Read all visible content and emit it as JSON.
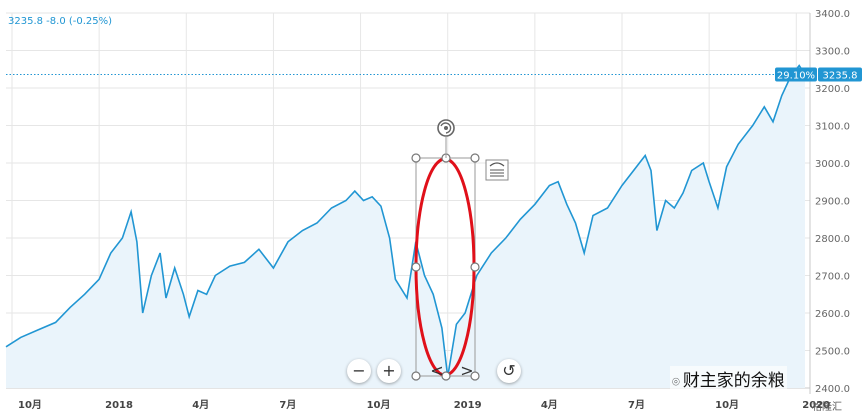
{
  "readout": {
    "text": "3235.8 -8.0 (-0.25%)"
  },
  "price_tag": {
    "change": "29.10%",
    "price": "3235.8"
  },
  "controls": {
    "zoom_out": "−",
    "zoom_in": "+",
    "prev": "<",
    "next": ">",
    "reset": "↺"
  },
  "watermark": {
    "text": "财主家的余粮",
    "icon": "wechat-icon"
  },
  "watermark2": {
    "text": "格隆汇"
  },
  "colors": {
    "line": "#2196d3",
    "fill": "#eaf4fb",
    "annotation": "#e0101a",
    "grid": "#e6e6e6",
    "price_tag": "#2196d3"
  },
  "chart_data": {
    "type": "area",
    "ylim": [
      2400,
      3400
    ],
    "y_ticks": [
      "3400.0",
      "3300.0",
      "3200.0",
      "3100.0",
      "3000.0",
      "2900.0",
      "2800.0",
      "2700.0",
      "2600.0",
      "2500.0",
      "2400.0"
    ],
    "x_ticks": [
      {
        "label": "10月",
        "t": 0
      },
      {
        "label": "2018",
        "t": 3
      },
      {
        "label": "4月",
        "t": 6
      },
      {
        "label": "7月",
        "t": 9
      },
      {
        "label": "10月",
        "t": 12
      },
      {
        "label": "2019",
        "t": 15
      },
      {
        "label": "4月",
        "t": 18
      },
      {
        "label": "7月",
        "t": 21
      },
      {
        "label": "10月",
        "t": 24
      },
      {
        "label": "2020",
        "t": 27
      }
    ],
    "series": [
      {
        "values": [
          [
            -0.3,
            2510
          ],
          [
            0.3,
            2535
          ],
          [
            0.9,
            2555
          ],
          [
            1.5,
            2575
          ],
          [
            2.0,
            2615
          ],
          [
            2.5,
            2650
          ],
          [
            3.0,
            2690
          ],
          [
            3.4,
            2760
          ],
          [
            3.8,
            2800
          ],
          [
            4.1,
            2870
          ],
          [
            4.3,
            2790
          ],
          [
            4.5,
            2600
          ],
          [
            4.8,
            2700
          ],
          [
            5.1,
            2760
          ],
          [
            5.3,
            2640
          ],
          [
            5.6,
            2720
          ],
          [
            5.9,
            2650
          ],
          [
            6.1,
            2590
          ],
          [
            6.4,
            2660
          ],
          [
            6.7,
            2650
          ],
          [
            7.0,
            2700
          ],
          [
            7.5,
            2725
          ],
          [
            8.0,
            2735
          ],
          [
            8.5,
            2770
          ],
          [
            9.0,
            2720
          ],
          [
            9.5,
            2790
          ],
          [
            10.0,
            2820
          ],
          [
            10.5,
            2840
          ],
          [
            11.0,
            2880
          ],
          [
            11.5,
            2900
          ],
          [
            11.8,
            2925
          ],
          [
            12.1,
            2900
          ],
          [
            12.4,
            2910
          ],
          [
            12.7,
            2885
          ],
          [
            13.0,
            2800
          ],
          [
            13.2,
            2690
          ],
          [
            13.6,
            2640
          ],
          [
            13.9,
            2790
          ],
          [
            14.2,
            2700
          ],
          [
            14.5,
            2650
          ],
          [
            14.8,
            2560
          ],
          [
            15.0,
            2430
          ],
          [
            15.3,
            2570
          ],
          [
            15.6,
            2600
          ],
          [
            16.0,
            2700
          ],
          [
            16.5,
            2760
          ],
          [
            17.0,
            2800
          ],
          [
            17.5,
            2850
          ],
          [
            18.0,
            2890
          ],
          [
            18.5,
            2940
          ],
          [
            18.8,
            2950
          ],
          [
            19.1,
            2890
          ],
          [
            19.4,
            2840
          ],
          [
            19.7,
            2760
          ],
          [
            20.0,
            2860
          ],
          [
            20.5,
            2880
          ],
          [
            21.0,
            2940
          ],
          [
            21.5,
            2990
          ],
          [
            21.8,
            3020
          ],
          [
            22.0,
            2980
          ],
          [
            22.2,
            2820
          ],
          [
            22.5,
            2900
          ],
          [
            22.8,
            2880
          ],
          [
            23.1,
            2920
          ],
          [
            23.4,
            2980
          ],
          [
            23.8,
            3000
          ],
          [
            24.0,
            2950
          ],
          [
            24.3,
            2880
          ],
          [
            24.6,
            2990
          ],
          [
            25.0,
            3050
          ],
          [
            25.5,
            3100
          ],
          [
            25.9,
            3150
          ],
          [
            26.2,
            3110
          ],
          [
            26.5,
            3180
          ],
          [
            26.8,
            3230
          ],
          [
            27.1,
            3260
          ],
          [
            27.3,
            3236
          ]
        ]
      }
    ]
  }
}
